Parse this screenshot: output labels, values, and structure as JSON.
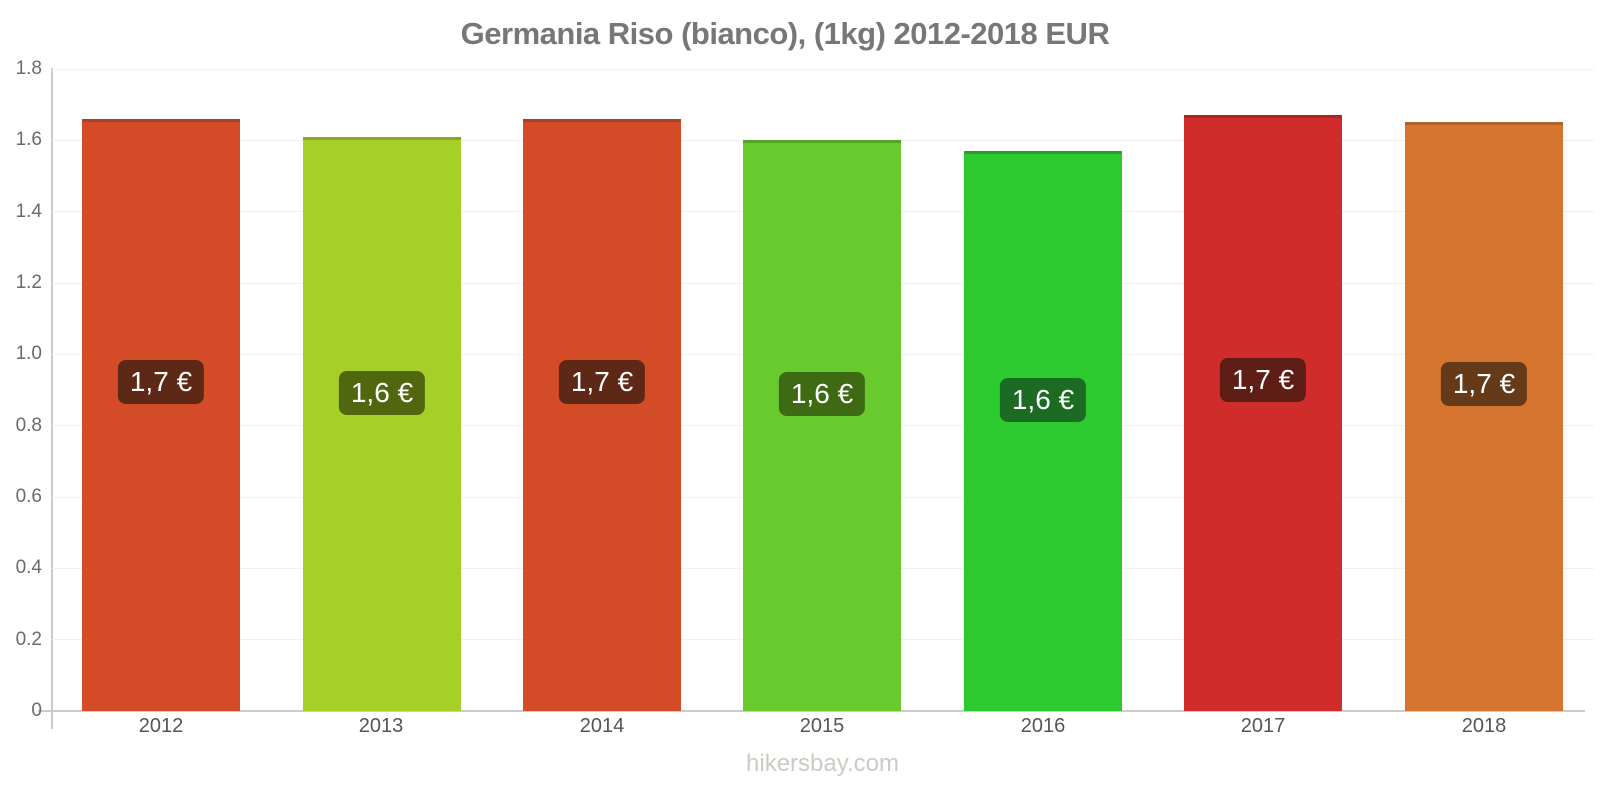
{
  "title": "Germania Riso (bianco), (1kg) 2012-2018 EUR",
  "watermark": "hikersbay.com",
  "chart_data": {
    "type": "bar",
    "title": "Germania Riso (bianco), (1kg) 2012-2018 EUR",
    "categories": [
      "2012",
      "2013",
      "2014",
      "2015",
      "2016",
      "2017",
      "2018"
    ],
    "values": [
      1.66,
      1.61,
      1.66,
      1.6,
      1.57,
      1.67,
      1.65
    ],
    "bar_labels": [
      "1,7 €",
      "1,6 €",
      "1,7 €",
      "1,6 €",
      "1,6 €",
      "1,7 €",
      "1,7 €"
    ],
    "bar_colors": [
      "#d44b28",
      "#a6cf28",
      "#d44b28",
      "#68ca2d",
      "#2cc92f",
      "#d12c2c",
      "#d67530"
    ],
    "bar_edge_colors": [
      "#a8432a",
      "#89a822",
      "#a8432a",
      "#55a526",
      "#24a327",
      "#ab2724",
      "#b1622a"
    ],
    "badge_colors": [
      "#5e2817",
      "#50660f",
      "#5e2817",
      "#3d6a12",
      "#1b6b22",
      "#5e1d15",
      "#643a18"
    ],
    "badge_text_color": "#ffffff",
    "xlabel": "",
    "ylabel": "",
    "ylim": [
      0,
      1.8
    ],
    "ytick_values": [
      0,
      0.2,
      0.4,
      0.6,
      0.8,
      1.0,
      1.2,
      1.4,
      1.6,
      1.8
    ],
    "ytick_labels": [
      "0",
      "0.2",
      "0.4",
      "0.6",
      "0.8",
      "1.0",
      "1.2",
      "1.4",
      "1.6",
      "1.8"
    ],
    "grid": true,
    "legend": false,
    "currency": "EUR"
  },
  "colors": {
    "background": "#ffffff",
    "title": "#777777",
    "axis_line": "#cccccc",
    "gridline": "#f1f1f1",
    "ytick_label": "#6b6b6b",
    "xtick_label": "#555555",
    "watermark": "#c9ccc4"
  }
}
